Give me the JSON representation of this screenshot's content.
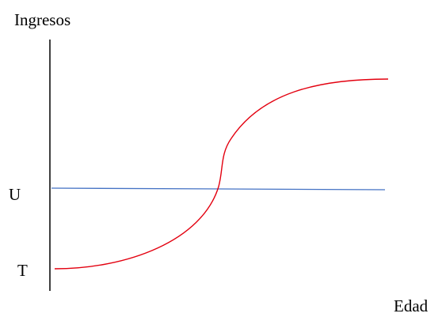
{
  "diagram": {
    "y_axis_label": "Ingresos",
    "x_axis_label": "Edad",
    "level_labels": {
      "upper": "U",
      "lower": "T"
    },
    "curves": [
      {
        "id": "horizontal-line",
        "color": "#4472C4",
        "shape": "nearly flat line, slight downward slope"
      },
      {
        "id": "s-curve",
        "color": "#E3000F",
        "shape": "S-shaped curve rising from T level to above U level, crossing the horizontal line"
      }
    ]
  }
}
